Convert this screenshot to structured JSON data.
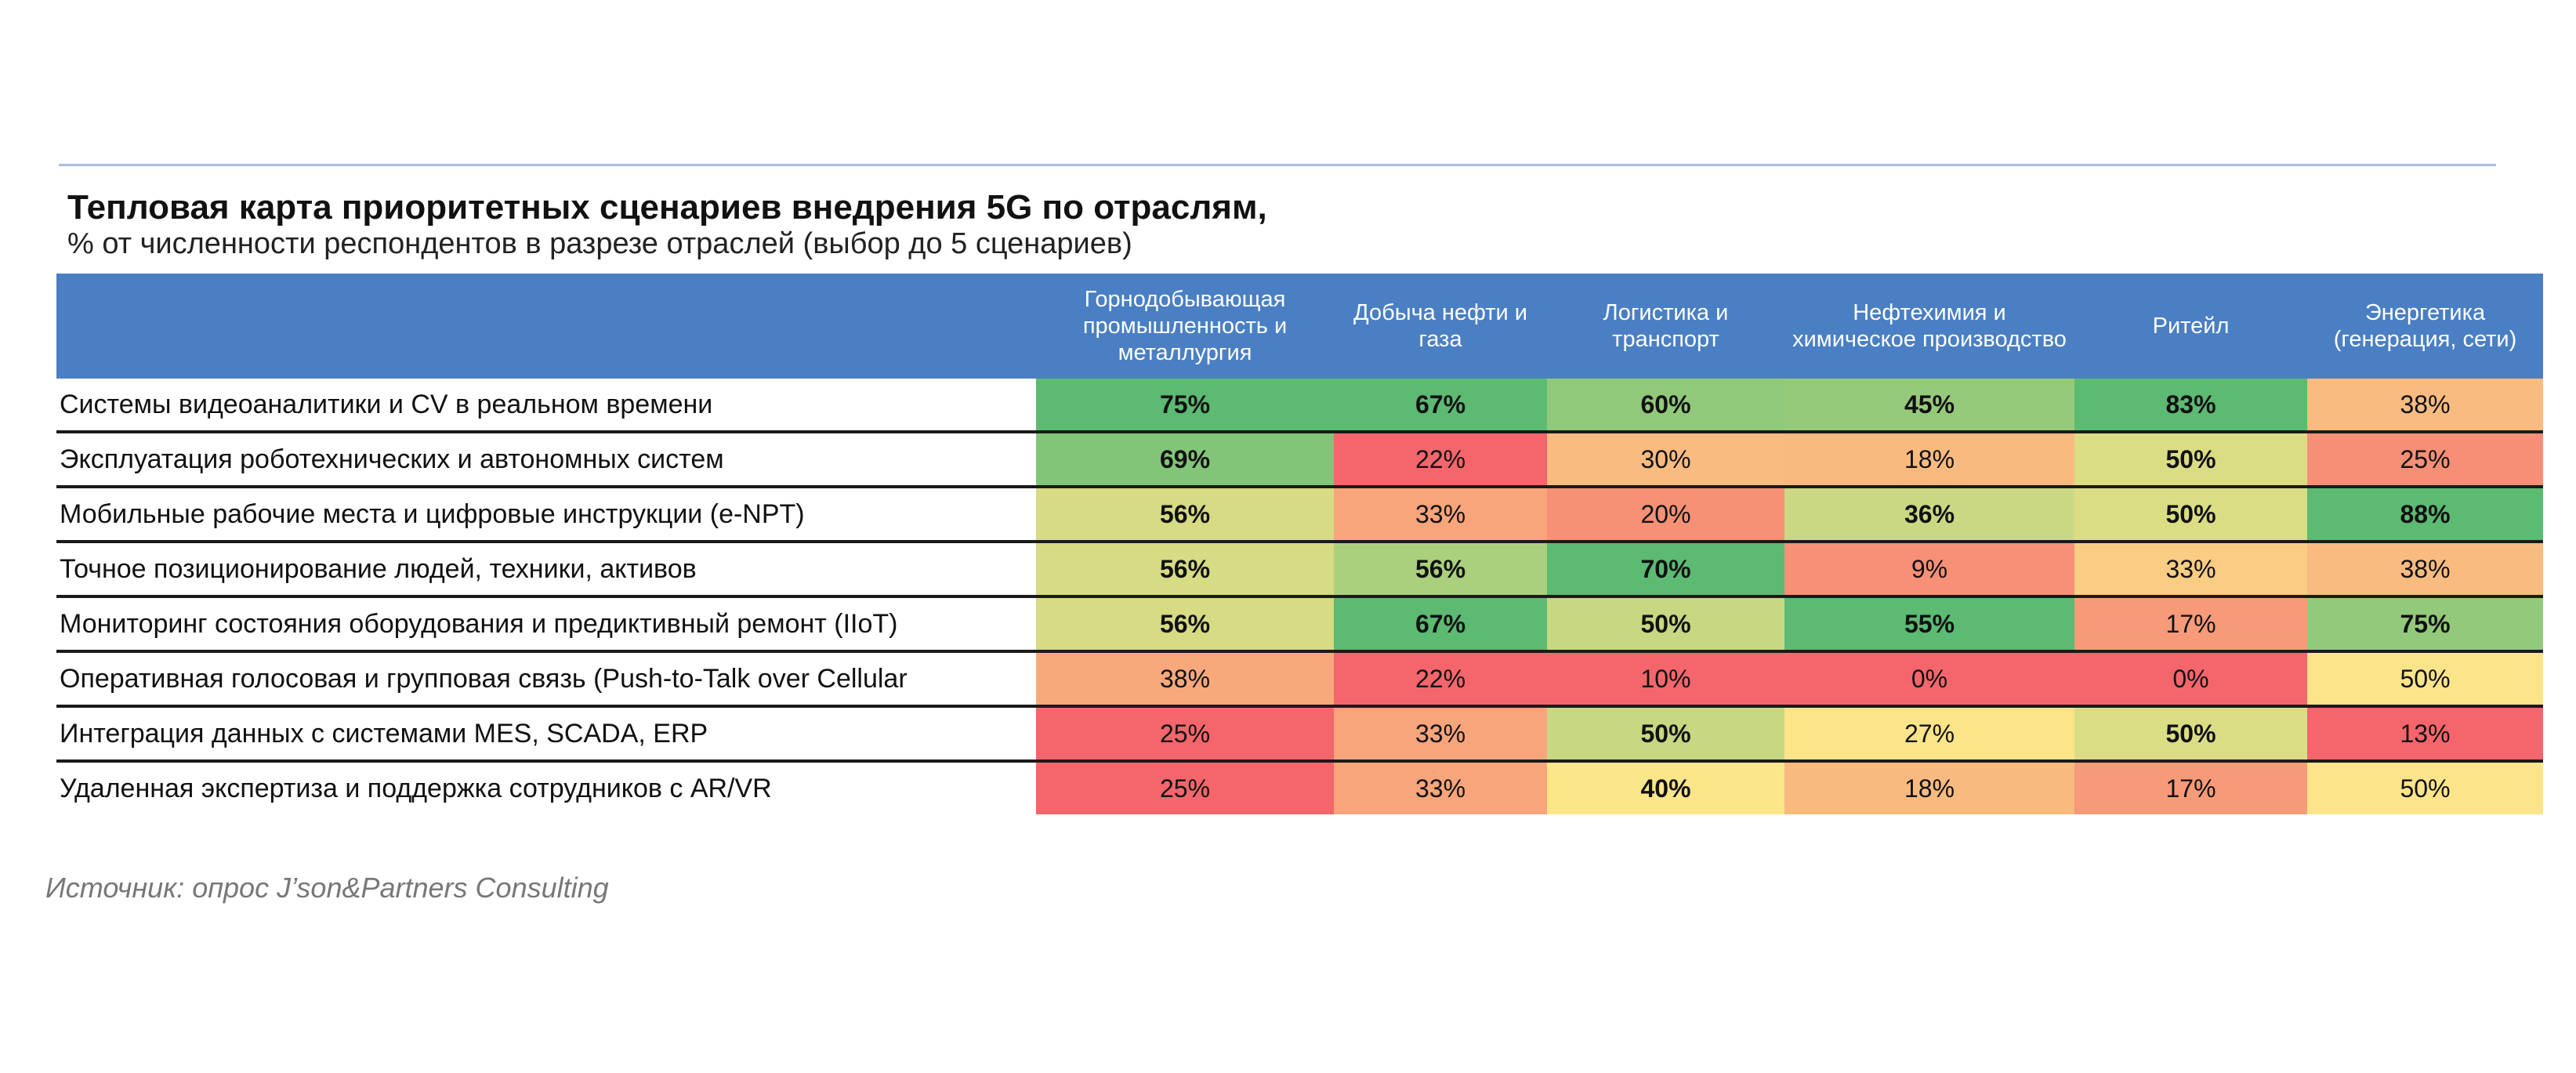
{
  "chart_data": {
    "type": "heatmap",
    "title": "Тепловая карта приоритетных сценариев внедрения 5G по отраслям,",
    "subtitle": "% от численности респондентов в разрезе отраслей (выбор до 5 сценариев)",
    "source": "Источник: опрос J’son&Partners Consulting",
    "columns": [
      "Горнодобывающая промышленность и металлургия",
      "Добыча нефти и газа",
      "Логистика и транспорт",
      "Нефтехимия и химическое производство",
      "Ритейл",
      "Энергетика (генерация, сети)"
    ],
    "rows": [
      "Системы видеоаналитики и CV в реальном времени",
      "Эксплуатация роботехнических и автономных систем",
      "Мобильные рабочие места и цифровые инструкции (e-NPT)",
      "Точное позиционирование людей, техники, активов",
      "Мониторинг состояния оборудования и предиктивный ремонт (IIoT)",
      "Оперативная голосовая и групповая связь (Push-to-Talk over Cellular",
      "Интеграция данных с системами MES, SCADA, ERP",
      "Удаленная экспертиза и поддержка сотрудников с AR/VR"
    ],
    "values": [
      [
        75,
        67,
        60,
        45,
        83,
        38
      ],
      [
        69,
        22,
        30,
        18,
        50,
        25
      ],
      [
        56,
        33,
        20,
        36,
        50,
        88
      ],
      [
        56,
        56,
        70,
        9,
        33,
        38
      ],
      [
        56,
        67,
        50,
        55,
        17,
        75
      ],
      [
        38,
        22,
        10,
        0,
        0,
        50
      ],
      [
        25,
        33,
        50,
        27,
        50,
        13
      ],
      [
        25,
        33,
        40,
        18,
        17,
        50
      ]
    ],
    "value_suffix": "%",
    "colors": {
      "header_bg": "#4a7fc4",
      "header_text": "#ffffff",
      "scale_low": "#f4666c",
      "scale_mid": "#fce68a",
      "scale_high": "#5cba73"
    }
  }
}
